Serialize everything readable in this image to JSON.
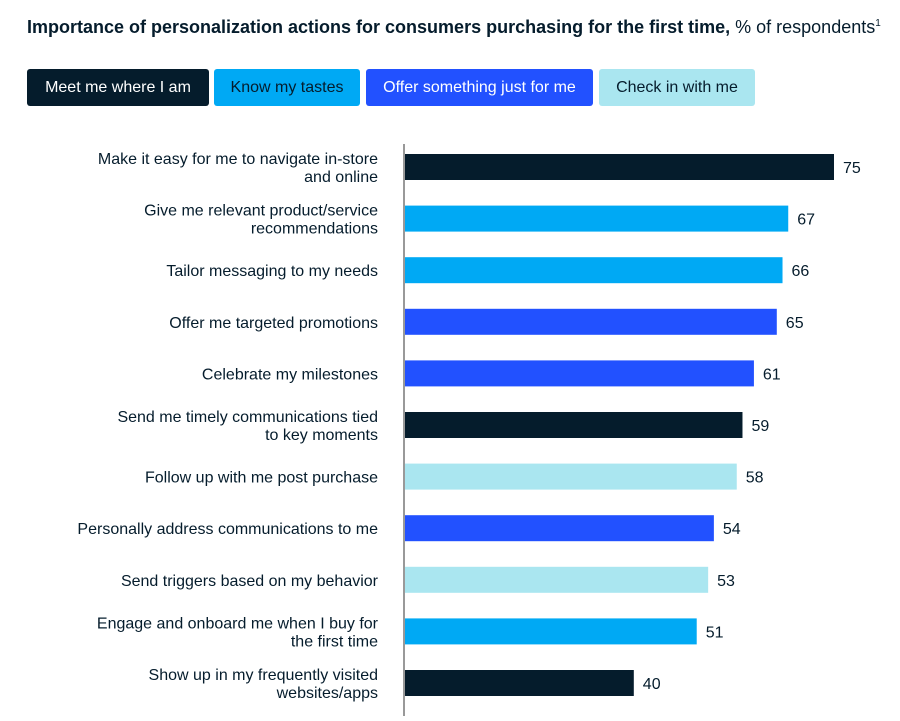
{
  "header": {
    "title_bold": "Importance of personalization actions for consumers purchasing for the first time,",
    "title_unit": "% of respondents",
    "title_footnote": "1"
  },
  "legend": [
    {
      "key": "meet",
      "label": "Meet me where I am",
      "color": "#051c2c",
      "text_color": "#ffffff"
    },
    {
      "key": "tastes",
      "label": "Know my tastes",
      "color": "#00a9f4",
      "text_color": "#051c2c"
    },
    {
      "key": "offer",
      "label": "Offer something just for me",
      "color": "#2251ff",
      "text_color": "#ffffff"
    },
    {
      "key": "checkin",
      "label": "Check in with me",
      "color": "#aae6f0",
      "text_color": "#051c2c"
    }
  ],
  "chart_data": {
    "type": "bar",
    "orientation": "horizontal",
    "title": "Importance of personalization actions for consumers purchasing for the first time, % of respondents",
    "xlim": [
      0,
      75
    ],
    "grid": false,
    "categories": [
      [
        "Make it easy for me to navigate in-store",
        "and online"
      ],
      [
        "Give me relevant product/service",
        "recommendations"
      ],
      [
        "Tailor messaging to my needs"
      ],
      [
        "Offer me targeted promotions"
      ],
      [
        "Celebrate my milestones"
      ],
      [
        "Send me timely communications tied",
        "to key moments"
      ],
      [
        "Follow up with me post purchase"
      ],
      [
        "Personally address communications to me"
      ],
      [
        "Send triggers based on my behavior"
      ],
      [
        "Engage and onboard me when I buy for",
        "the first time"
      ],
      [
        "Show up in my frequently visited",
        "websites/apps"
      ]
    ],
    "values": [
      75,
      67,
      66,
      65,
      61,
      59,
      58,
      54,
      53,
      51,
      40
    ],
    "groups": [
      "meet",
      "tastes",
      "tastes",
      "offer",
      "offer",
      "meet",
      "checkin",
      "offer",
      "checkin",
      "tastes",
      "meet"
    ]
  }
}
